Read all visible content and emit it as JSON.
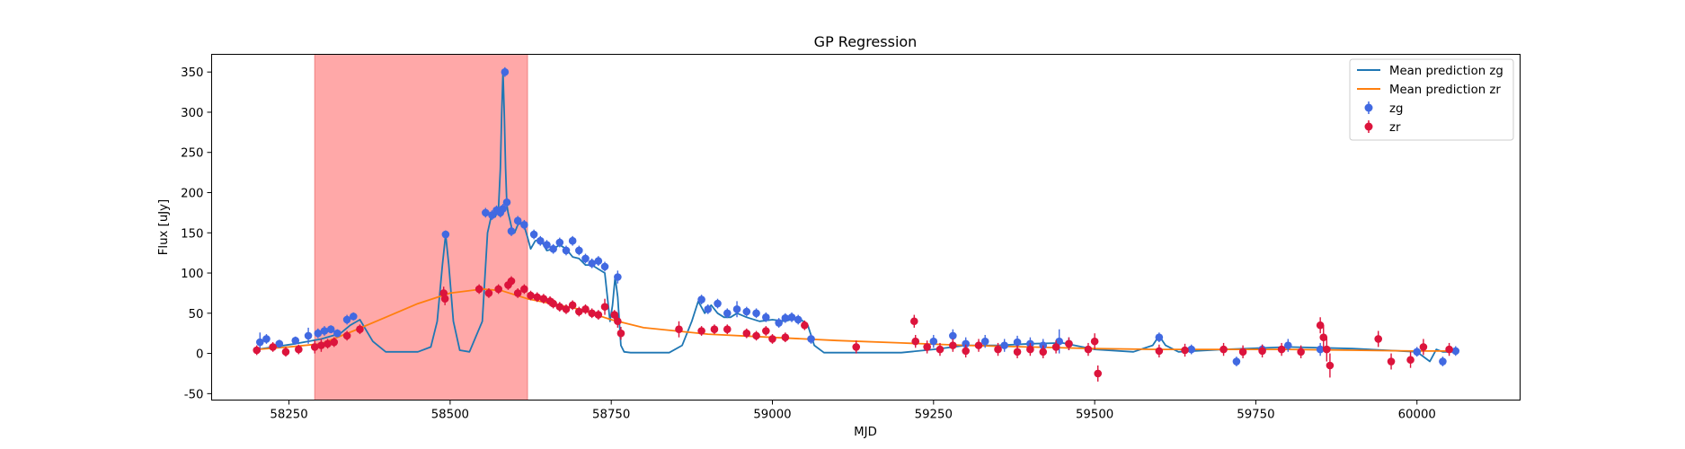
{
  "chart_data": {
    "type": "scatter",
    "title": "GP Regression",
    "xlabel": "MJD",
    "ylabel": "Flux [uJy]",
    "xlim": [
      58130,
      60160
    ],
    "ylim": [
      -58,
      372
    ],
    "xticks": [
      58250,
      58500,
      58750,
      59000,
      59250,
      59500,
      59750,
      60000
    ],
    "yticks": [
      -50,
      0,
      50,
      100,
      150,
      200,
      250,
      300,
      350
    ],
    "grid": false,
    "legend_placement": "top-right",
    "shaded_region": {
      "x": [
        58290,
        58620
      ],
      "color": "#ffa8a8"
    },
    "legend": [
      "Mean prediction zg",
      "Mean prediction zr",
      "zg",
      "zr"
    ],
    "series": [
      {
        "name": "Mean prediction zg",
        "kind": "line",
        "color": "#1f77b4",
        "x": [
          58200,
          58260,
          58300,
          58330,
          58345,
          58360,
          58380,
          58400,
          58450,
          58470,
          58480,
          58488,
          58493,
          58498,
          58505,
          58515,
          58530,
          58550,
          58558,
          58565,
          58570,
          58575,
          58578,
          58580,
          58582,
          58584,
          58586,
          58588,
          58590,
          58593,
          58597,
          58600,
          58605,
          58610,
          58615,
          58620,
          58625,
          58632,
          58640,
          58650,
          58660,
          58670,
          58680,
          58690,
          58700,
          58710,
          58720,
          58730,
          58740,
          58748,
          58752,
          58756,
          58760,
          58765,
          58770,
          58780,
          58800,
          58820,
          58840,
          58860,
          58875,
          58885,
          58895,
          58905,
          58915,
          58925,
          58935,
          58945,
          58960,
          58980,
          59000,
          59020,
          59040,
          59055,
          59065,
          59080,
          59120,
          59200,
          59250,
          59300,
          59350,
          59400,
          59450,
          59500,
          59560,
          59590,
          59600,
          59610,
          59630,
          59700,
          59800,
          59900,
          60000,
          60020,
          60030,
          60040,
          60060
        ],
        "y": [
          5,
          12,
          18,
          25,
          35,
          42,
          15,
          2,
          2,
          8,
          40,
          110,
          148,
          110,
          40,
          4,
          2,
          40,
          150,
          175,
          170,
          180,
          230,
          300,
          350,
          300,
          230,
          185,
          175,
          165,
          150,
          150,
          160,
          162,
          158,
          145,
          130,
          140,
          142,
          128,
          130,
          135,
          130,
          120,
          118,
          110,
          110,
          105,
          100,
          40,
          60,
          95,
          70,
          10,
          2,
          1,
          1,
          1,
          1,
          10,
          40,
          65,
          50,
          60,
          50,
          45,
          45,
          50,
          45,
          40,
          42,
          40,
          45,
          35,
          10,
          1,
          1,
          1,
          5,
          10,
          10,
          12,
          13,
          5,
          2,
          10,
          22,
          10,
          2,
          5,
          8,
          6,
          2,
          -10,
          5,
          2,
          2
        ]
      },
      {
        "name": "Mean prediction zr",
        "kind": "line",
        "color": "#ff7f0e",
        "x": [
          58200,
          58250,
          58300,
          58350,
          58400,
          58450,
          58500,
          58550,
          58580,
          58620,
          58700,
          58750,
          58800,
          58900,
          59000,
          59100,
          59200,
          59300,
          59400,
          59500,
          59600,
          59700,
          59800,
          59900,
          60000,
          60060
        ],
        "y": [
          5,
          8,
          12,
          28,
          45,
          62,
          75,
          80,
          78,
          68,
          55,
          42,
          32,
          24,
          20,
          16,
          13,
          10,
          8,
          6,
          5,
          5,
          5,
          4,
          3,
          3
        ]
      },
      {
        "name": "zg",
        "kind": "errorbar",
        "color": "#4169e1",
        "x": [
          58205,
          58215,
          58235,
          58260,
          58280,
          58295,
          58305,
          58315,
          58325,
          58340,
          58350,
          58493,
          58555,
          58565,
          58572,
          58578,
          58582,
          58585,
          58588,
          58595,
          58605,
          58615,
          58630,
          58640,
          58650,
          58660,
          58670,
          58680,
          58690,
          58700,
          58710,
          58720,
          58730,
          58740,
          58760,
          58890,
          58900,
          58915,
          58930,
          58945,
          58960,
          58975,
          58990,
          59010,
          59020,
          59030,
          59040,
          59060,
          59250,
          59280,
          59300,
          59330,
          59360,
          59380,
          59400,
          59420,
          59445,
          59460,
          59600,
          59650,
          59720,
          59760,
          59800,
          59850,
          60000,
          60040,
          60060
        ],
        "y": [
          14,
          18,
          12,
          16,
          22,
          25,
          28,
          30,
          25,
          42,
          46,
          148,
          175,
          172,
          178,
          175,
          180,
          350,
          188,
          152,
          165,
          160,
          148,
          140,
          135,
          130,
          138,
          128,
          140,
          128,
          118,
          112,
          115,
          108,
          95,
          67,
          55,
          62,
          50,
          55,
          52,
          50,
          45,
          38,
          44,
          45,
          42,
          18,
          15,
          22,
          12,
          15,
          10,
          14,
          12,
          10,
          15,
          12,
          20,
          5,
          -10,
          5,
          10,
          5,
          2,
          -10,
          3
        ],
        "err": [
          12,
          6,
          5,
          5,
          10,
          6,
          6,
          5,
          5,
          6,
          5,
          5,
          6,
          6,
          6,
          6,
          6,
          6,
          6,
          6,
          6,
          6,
          6,
          6,
          6,
          6,
          6,
          6,
          6,
          6,
          6,
          6,
          6,
          6,
          8,
          6,
          6,
          6,
          6,
          10,
          6,
          6,
          6,
          6,
          6,
          6,
          6,
          6,
          8,
          8,
          8,
          8,
          8,
          8,
          8,
          8,
          15,
          8,
          6,
          6,
          6,
          6,
          8,
          8,
          6,
          6,
          6
        ]
      },
      {
        "name": "zr",
        "kind": "errorbar",
        "color": "#dc143c",
        "x": [
          58200,
          58225,
          58245,
          58265,
          58290,
          58300,
          58310,
          58320,
          58340,
          58360,
          58490,
          58492,
          58545,
          58560,
          58575,
          58590,
          58595,
          58605,
          58615,
          58625,
          58635,
          58645,
          58655,
          58660,
          58670,
          58680,
          58690,
          58700,
          58710,
          58720,
          58730,
          58740,
          58755,
          58760,
          58765,
          58855,
          58890,
          58910,
          58930,
          58960,
          58975,
          58990,
          59000,
          59020,
          59050,
          59130,
          59220,
          59222,
          59240,
          59260,
          59280,
          59300,
          59320,
          59350,
          59380,
          59400,
          59420,
          59440,
          59460,
          59490,
          59500,
          59505,
          59600,
          59640,
          59700,
          59730,
          59760,
          59790,
          59820,
          59850,
          59855,
          59860,
          59865,
          59940,
          59960,
          59990,
          60010,
          60050
        ],
        "y": [
          4,
          8,
          2,
          5,
          8,
          10,
          12,
          14,
          22,
          30,
          75,
          68,
          80,
          75,
          80,
          85,
          90,
          75,
          80,
          72,
          70,
          68,
          65,
          62,
          58,
          55,
          60,
          52,
          55,
          50,
          48,
          58,
          48,
          40,
          25,
          30,
          28,
          30,
          30,
          25,
          22,
          28,
          18,
          20,
          35,
          8,
          40,
          15,
          8,
          5,
          10,
          3,
          10,
          5,
          2,
          5,
          2,
          8,
          12,
          5,
          15,
          -25,
          3,
          4,
          5,
          2,
          3,
          5,
          2,
          35,
          20,
          5,
          -15,
          18,
          -10,
          -8,
          8,
          5
        ],
        "err": [
          6,
          6,
          6,
          6,
          8,
          8,
          6,
          6,
          6,
          6,
          8,
          8,
          6,
          6,
          6,
          6,
          6,
          6,
          6,
          6,
          6,
          6,
          6,
          6,
          6,
          6,
          6,
          6,
          6,
          6,
          6,
          10,
          6,
          8,
          8,
          10,
          6,
          6,
          6,
          6,
          6,
          6,
          6,
          6,
          6,
          8,
          8,
          8,
          8,
          8,
          8,
          8,
          8,
          8,
          8,
          8,
          8,
          8,
          8,
          8,
          10,
          10,
          8,
          8,
          8,
          8,
          8,
          8,
          8,
          10,
          15,
          15,
          15,
          10,
          10,
          10,
          10,
          8
        ]
      }
    ]
  }
}
